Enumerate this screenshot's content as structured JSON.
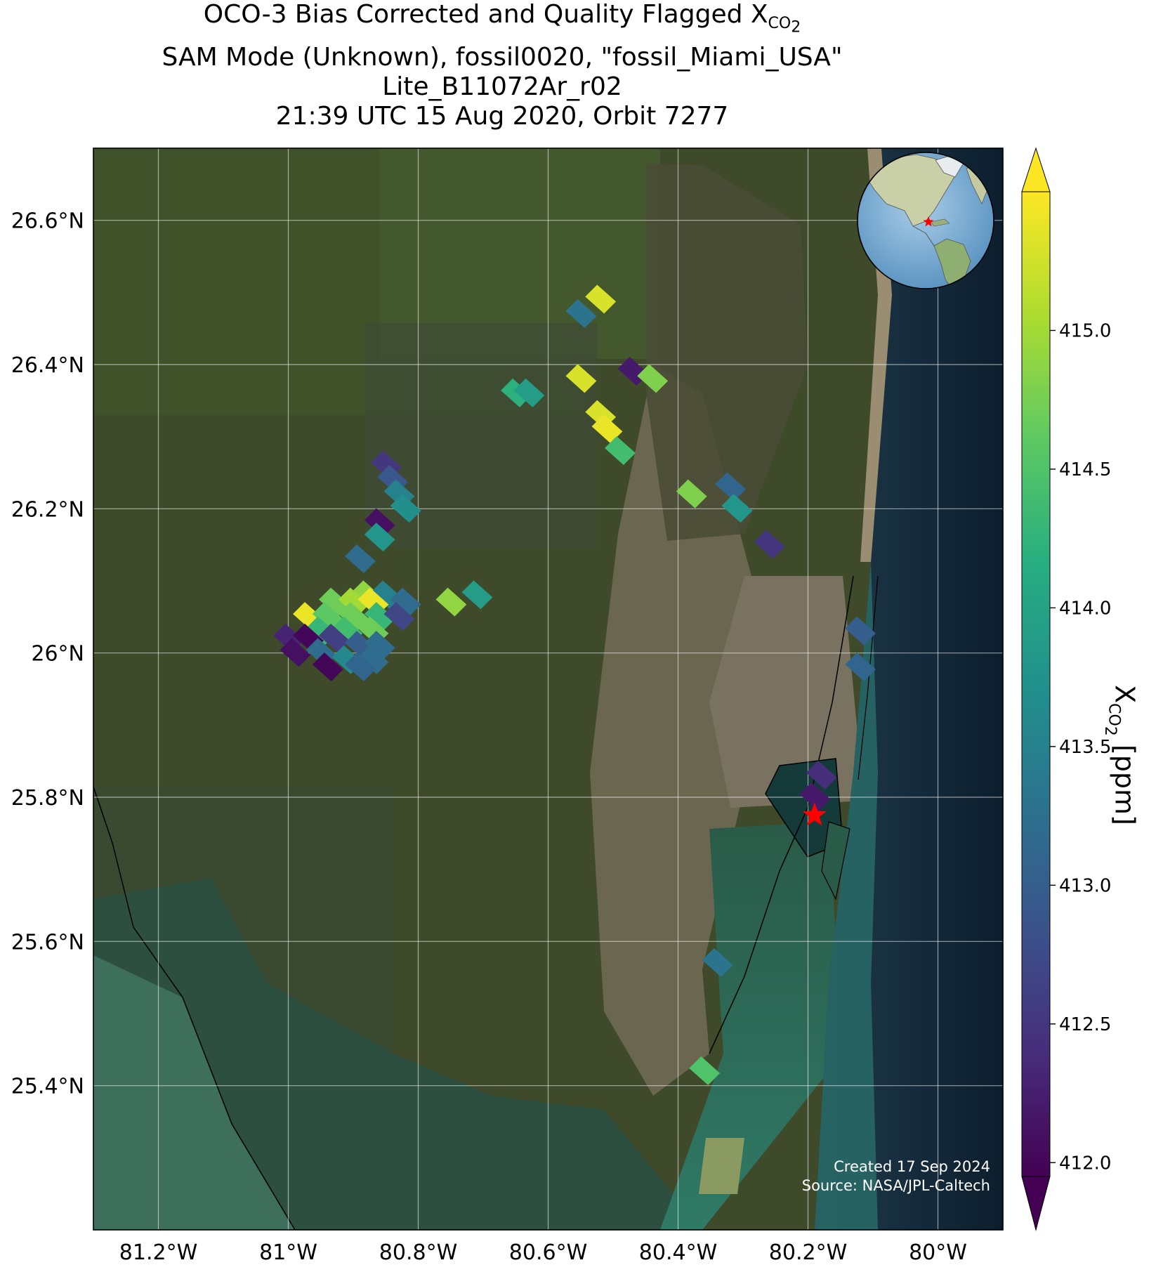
{
  "title": {
    "line1_prefix": "OCO-3 Bias Corrected and Quality Flagged X",
    "line1_sub": "CO",
    "line1_subsub": "2",
    "line2": "SAM Mode (Unknown), fossil0020, \"fossil_Miami_USA\"",
    "line3": "Lite_B11072Ar_r02",
    "line4": "21:39 UTC 15 Aug 2020, Orbit 7277"
  },
  "map": {
    "lat_ticks": [
      "26.6°N",
      "26.4°N",
      "26.2°N",
      "26°N",
      "25.8°N",
      "25.6°N",
      "25.4°N"
    ],
    "lon_ticks": [
      "81.2°W",
      "81°W",
      "80.8°W",
      "80.6°W",
      "80.4°W",
      "80.2°W",
      "80°W"
    ],
    "lat_values": [
      26.6,
      26.4,
      26.2,
      26.0,
      25.8,
      25.6,
      25.4
    ],
    "lon_values": [
      -81.2,
      -81.0,
      -80.8,
      -80.6,
      -80.4,
      -80.2,
      -80.0
    ],
    "extent": {
      "lon_min": -81.3,
      "lon_max": -79.9,
      "lat_min": 25.2,
      "lat_max": 26.7
    },
    "target_marker": {
      "lon": -80.19,
      "lat": 25.775,
      "color": "#ff0000"
    },
    "background": "satellite imagery",
    "inset_globe": "globe-inset"
  },
  "colorbar": {
    "label_prefix": "X",
    "label_sub": "CO",
    "label_subsub": "2",
    "label_suffix": " [ppm]",
    "ticks": [
      "415.0",
      "414.5",
      "414.0",
      "413.5",
      "413.0",
      "412.5",
      "412.0"
    ],
    "tick_values": [
      415.0,
      414.5,
      414.0,
      413.5,
      413.0,
      412.5,
      412.0
    ],
    "range": [
      411.95,
      415.5
    ],
    "colormap": "viridis",
    "extend": "both"
  },
  "credit": {
    "line1": "Created 17 Sep 2024",
    "line2": "Source: NASA/JPL-Caltech"
  },
  "chart_data": {
    "type": "scatter",
    "description_kind": "soundings",
    "soundings": [
      {
        "lon": -80.52,
        "lat": 26.49,
        "xco2": 415.3
      },
      {
        "lon": -80.55,
        "lat": 26.47,
        "xco2": 413.3
      },
      {
        "lon": -80.47,
        "lat": 26.39,
        "xco2": 412.2
      },
      {
        "lon": -80.44,
        "lat": 26.38,
        "xco2": 414.8
      },
      {
        "lon": -80.55,
        "lat": 26.38,
        "xco2": 415.3
      },
      {
        "lon": -80.65,
        "lat": 26.36,
        "xco2": 414.2
      },
      {
        "lon": -80.63,
        "lat": 26.36,
        "xco2": 413.9
      },
      {
        "lon": -80.52,
        "lat": 26.33,
        "xco2": 415.3
      },
      {
        "lon": -80.51,
        "lat": 26.31,
        "xco2": 415.4
      },
      {
        "lon": -80.49,
        "lat": 26.28,
        "xco2": 414.4
      },
      {
        "lon": -80.85,
        "lat": 26.26,
        "xco2": 412.5
      },
      {
        "lon": -80.84,
        "lat": 26.24,
        "xco2": 412.9
      },
      {
        "lon": -80.83,
        "lat": 26.22,
        "xco2": 413.5
      },
      {
        "lon": -80.82,
        "lat": 26.2,
        "xco2": 413.7
      },
      {
        "lon": -80.38,
        "lat": 26.22,
        "xco2": 414.8
      },
      {
        "lon": -80.32,
        "lat": 26.23,
        "xco2": 413.1
      },
      {
        "lon": -80.31,
        "lat": 26.2,
        "xco2": 413.8
      },
      {
        "lon": -80.26,
        "lat": 26.15,
        "xco2": 412.5
      },
      {
        "lon": -80.86,
        "lat": 26.18,
        "xco2": 412.1
      },
      {
        "lon": -80.86,
        "lat": 26.16,
        "xco2": 413.8
      },
      {
        "lon": -80.89,
        "lat": 26.13,
        "xco2": 413.2
      },
      {
        "lon": -80.88,
        "lat": 26.08,
        "xco2": 414.9
      },
      {
        "lon": -80.85,
        "lat": 26.08,
        "xco2": 413.5
      },
      {
        "lon": -80.82,
        "lat": 26.07,
        "xco2": 413.2
      },
      {
        "lon": -80.75,
        "lat": 26.07,
        "xco2": 414.9
      },
      {
        "lon": -80.71,
        "lat": 26.08,
        "xco2": 413.9
      },
      {
        "lon": -80.93,
        "lat": 26.07,
        "xco2": 414.7
      },
      {
        "lon": -80.9,
        "lat": 26.07,
        "xco2": 415.0
      },
      {
        "lon": -80.87,
        "lat": 26.07,
        "xco2": 415.4
      },
      {
        "lon": -80.97,
        "lat": 26.05,
        "xco2": 415.4
      },
      {
        "lon": -80.94,
        "lat": 26.05,
        "xco2": 414.6
      },
      {
        "lon": -80.9,
        "lat": 26.05,
        "xco2": 414.7
      },
      {
        "lon": -80.86,
        "lat": 26.05,
        "xco2": 414.3
      },
      {
        "lon": -80.83,
        "lat": 26.05,
        "xco2": 412.7
      },
      {
        "lon": -80.95,
        "lat": 26.03,
        "xco2": 414.3
      },
      {
        "lon": -80.91,
        "lat": 26.03,
        "xco2": 414.4
      },
      {
        "lon": -80.87,
        "lat": 26.03,
        "xco2": 414.7
      },
      {
        "lon": -81.0,
        "lat": 26.02,
        "xco2": 412.3
      },
      {
        "lon": -80.97,
        "lat": 26.02,
        "xco2": 412.0
      },
      {
        "lon": -80.93,
        "lat": 26.02,
        "xco2": 412.6
      },
      {
        "lon": -80.89,
        "lat": 26.01,
        "xco2": 413.0
      },
      {
        "lon": -80.86,
        "lat": 26.01,
        "xco2": 413.2
      },
      {
        "lon": -80.99,
        "lat": 26.0,
        "xco2": 412.1
      },
      {
        "lon": -80.95,
        "lat": 26.0,
        "xco2": 413.2
      },
      {
        "lon": -80.91,
        "lat": 25.99,
        "xco2": 413.6
      },
      {
        "lon": -80.87,
        "lat": 25.99,
        "xco2": 413.2
      },
      {
        "lon": -80.94,
        "lat": 25.98,
        "xco2": 412.0
      },
      {
        "lon": -80.89,
        "lat": 25.98,
        "xco2": 413.1
      },
      {
        "lon": -80.12,
        "lat": 26.03,
        "xco2": 413.0
      },
      {
        "lon": -80.12,
        "lat": 25.98,
        "xco2": 413.1
      },
      {
        "lon": -80.18,
        "lat": 25.83,
        "xco2": 412.4
      },
      {
        "lon": -80.19,
        "lat": 25.8,
        "xco2": 412.2
      },
      {
        "lon": -80.34,
        "lat": 25.57,
        "xco2": 413.3
      },
      {
        "lon": -80.36,
        "lat": 25.42,
        "xco2": 414.5
      }
    ]
  }
}
